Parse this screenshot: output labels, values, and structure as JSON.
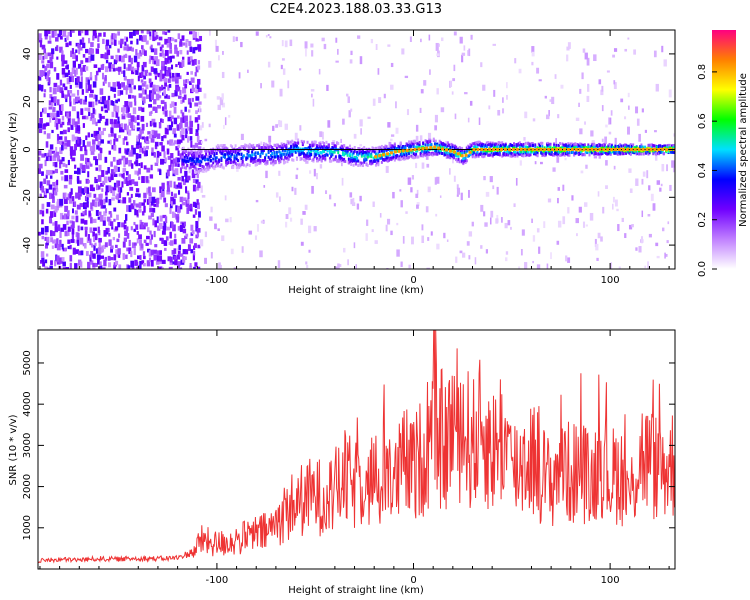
{
  "title": "C2E4.2023.188.03.33.G13",
  "chart_data": [
    {
      "type": "heatmap",
      "xlabel": "Height of straight line (km)",
      "ylabel": "Frequency (Hz)",
      "xlim": [
        -191,
        133
      ],
      "ylim": [
        -50,
        50
      ],
      "xticks": [
        -100,
        0,
        100
      ],
      "xtick_labels": [
        "-100",
        "0",
        "100"
      ],
      "yticks": [
        -40,
        -20,
        0,
        20,
        40
      ],
      "ytick_labels": [
        "-40",
        "-20",
        "0",
        "20",
        "40"
      ],
      "grid": false,
      "reference_line_frequency": 0,
      "noise_region_x": [
        -191,
        -110
      ],
      "tracked_signal": {
        "x": [
          -118,
          -110,
          -100,
          -90,
          -80,
          -70,
          -60,
          -50,
          -40,
          -30,
          -20,
          -10,
          0,
          10,
          20,
          25,
          30,
          40,
          50,
          60,
          70,
          80,
          90,
          100,
          110,
          120,
          133
        ],
        "frequency": [
          -4,
          -5,
          -3,
          -3,
          -2,
          -2,
          0,
          -1,
          -1,
          -3,
          -3,
          -1,
          0,
          1,
          -1,
          -3,
          0,
          0,
          0,
          0,
          0,
          0,
          0,
          0,
          0,
          0,
          0
        ]
      },
      "colorbar": {
        "label": "Normalized spectral amplitude",
        "range": [
          0,
          0.97
        ],
        "ticks": [
          0,
          0.2,
          0.4,
          0.6,
          0.8
        ],
        "tick_labels": [
          "0.0",
          "0.2",
          "0.4",
          "0.6",
          "0.8"
        ],
        "colors": [
          "#ffffff",
          "#c080ff",
          "#7000ff",
          "#0000ff",
          "#00e0ff",
          "#00ff00",
          "#ffff00",
          "#ff8000",
          "#ff0080"
        ]
      }
    },
    {
      "type": "line",
      "xlabel": "Height of straight line (km)",
      "ylabel": "SNR (10 * v/v)",
      "xlim": [
        -191,
        133
      ],
      "ylim": [
        0,
        5800
      ],
      "xticks": [
        -100,
        0,
        100
      ],
      "xtick_labels": [
        "-100",
        "0",
        "100"
      ],
      "yticks": [
        1000,
        2000,
        3000,
        4000,
        5000
      ],
      "ytick_labels": [
        "1000",
        "2000",
        "3000",
        "4000",
        "5000"
      ],
      "grid": false,
      "series": [
        {
          "color": "#ee3333",
          "x": [
            -191,
            -180,
            -170,
            -160,
            -150,
            -140,
            -130,
            -120,
            -112,
            -108,
            -100,
            -90,
            -80,
            -75,
            -70,
            -65,
            -60,
            -55,
            -50,
            -45,
            -40,
            -35,
            -30,
            -25,
            -22,
            -20,
            -18,
            -15,
            -10,
            -5,
            0,
            5,
            8,
            10,
            11,
            12,
            14,
            16,
            20,
            25,
            30,
            35,
            40,
            45,
            50,
            55,
            60,
            65,
            70,
            75,
            80,
            85,
            90,
            95,
            100,
            105,
            110,
            115,
            120,
            125,
            133
          ],
          "y": [
            200,
            230,
            220,
            250,
            240,
            260,
            250,
            270,
            420,
            700,
            600,
            700,
            850,
            900,
            1100,
            1400,
            1600,
            1700,
            1800,
            1700,
            1900,
            2200,
            2000,
            2300,
            2000,
            2600,
            1500,
            2800,
            2000,
            2600,
            2400,
            2800,
            3000,
            3600,
            4500,
            2600,
            3200,
            2900,
            3600,
            3400,
            3000,
            3400,
            2800,
            3300,
            2400,
            2600,
            2800,
            2400,
            2000,
            2800,
            2200,
            2600,
            2000,
            2800,
            2200,
            2400,
            1700,
            2800,
            2600,
            2400,
            2600
          ]
        }
      ]
    }
  ]
}
